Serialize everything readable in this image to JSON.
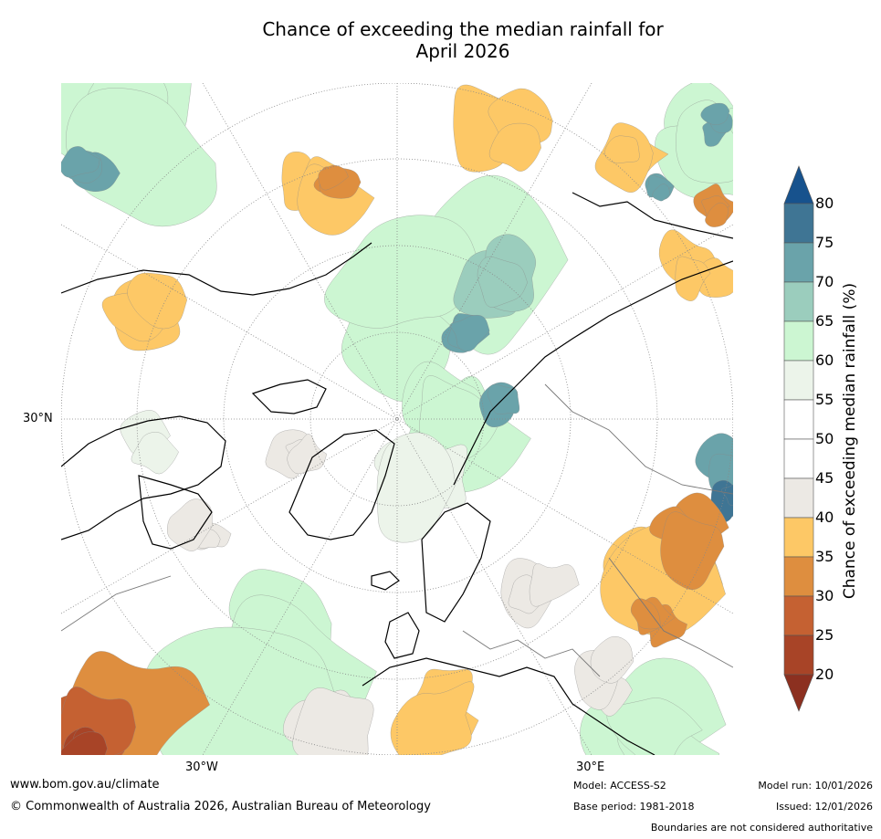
{
  "title": {
    "line1": "Chance of exceeding the median rainfall for",
    "line2": "April 2026"
  },
  "axes": {
    "lat_label": "30°N",
    "lon_label_west": "30°W",
    "lon_label_east": "30°E"
  },
  "colorbar": {
    "title": "Chance of exceeding median rainfall (%)",
    "ticks": [
      "80",
      "75",
      "70",
      "65",
      "60",
      "55",
      "50",
      "45",
      "40",
      "35",
      "30",
      "25",
      "20"
    ],
    "colors": {
      "c75_80": "#3f7594",
      "c70_75": "#6aa3aa",
      "c65_70": "#9bcdbd",
      "c60_65": "#ccf6d2",
      "c55_60": "#ecf4ea",
      "c50_55": "#ffffff",
      "c45_50": "#ffffff",
      "c40_45": "#ece9e4",
      "c35_40": "#fdc866",
      "c30_35": "#de8e3f",
      "c25_30": "#c56132",
      "c20_25": "#a84427",
      "over": "#17528d",
      "under": "#8c3020"
    }
  },
  "footer": {
    "website": "www.bom.gov.au/climate",
    "copyright": "© Commonwealth of Australia 2026, Australian Bureau of Meteorology",
    "model": "Model: ACCESS-S2",
    "base_period": "Base period: 1981-2018",
    "model_run": "Model run: 10/01/2026",
    "issued": "Issued: 12/01/2026",
    "disclaimer": "Boundaries are not considered authoritative"
  }
}
